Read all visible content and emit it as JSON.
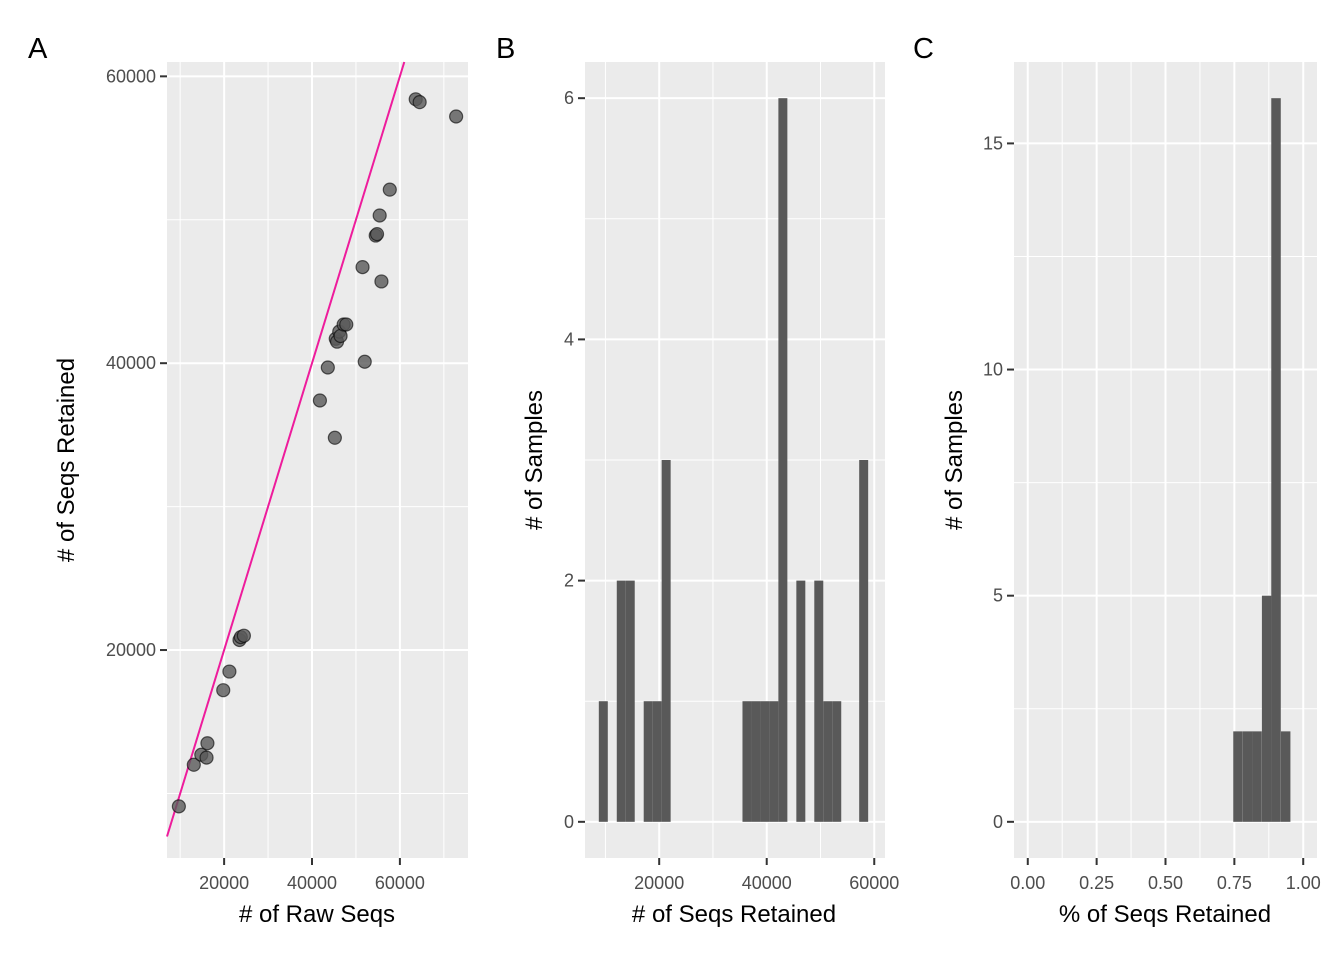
{
  "colors": {
    "panel_bg": "#ebebeb",
    "grid": "#ffffff",
    "tick": "#333333",
    "point_fill": "#595959",
    "point_stroke": "#000000",
    "bar_fill": "#595959",
    "line": "#ee1c9c"
  },
  "chart_data": [
    {
      "tag": "A",
      "type": "scatter",
      "xlabel": "# of Raw Seqs",
      "ylabel": "# of Seqs Retained",
      "xlim": [
        7000,
        75500
      ],
      "ylim": [
        5500,
        61000
      ],
      "xticks": [
        20000,
        40000,
        60000
      ],
      "xtick_labels": [
        "20000",
        "40000",
        "60000"
      ],
      "yticks": [
        20000,
        40000,
        60000
      ],
      "ytick_labels": [
        "20000",
        "40000",
        "60000"
      ],
      "grid": true,
      "reference_line": {
        "slope": 1,
        "intercept": 0
      },
      "points": [
        {
          "x": 9700,
          "y": 9100
        },
        {
          "x": 13100,
          "y": 12000
        },
        {
          "x": 14800,
          "y": 12700
        },
        {
          "x": 16000,
          "y": 12500
        },
        {
          "x": 16200,
          "y": 13500
        },
        {
          "x": 19800,
          "y": 17200
        },
        {
          "x": 21200,
          "y": 18500
        },
        {
          "x": 23500,
          "y": 20700
        },
        {
          "x": 23800,
          "y": 20900
        },
        {
          "x": 24500,
          "y": 21000
        },
        {
          "x": 41800,
          "y": 37400
        },
        {
          "x": 43600,
          "y": 39700
        },
        {
          "x": 45200,
          "y": 34800
        },
        {
          "x": 45400,
          "y": 41700
        },
        {
          "x": 45700,
          "y": 41500
        },
        {
          "x": 46200,
          "y": 42200
        },
        {
          "x": 46500,
          "y": 41900
        },
        {
          "x": 47200,
          "y": 42700
        },
        {
          "x": 47800,
          "y": 42700
        },
        {
          "x": 51500,
          "y": 46700
        },
        {
          "x": 52000,
          "y": 40100
        },
        {
          "x": 54500,
          "y": 48900
        },
        {
          "x": 54800,
          "y": 49000
        },
        {
          "x": 55400,
          "y": 50300
        },
        {
          "x": 55800,
          "y": 45700
        },
        {
          "x": 57700,
          "y": 52100
        },
        {
          "x": 63600,
          "y": 58400
        },
        {
          "x": 64500,
          "y": 58200
        },
        {
          "x": 72800,
          "y": 57200
        }
      ]
    },
    {
      "tag": "B",
      "type": "bar",
      "xlabel": "# of Seqs Retained",
      "ylabel": "# of Samples",
      "xlim": [
        6200,
        62000
      ],
      "ylim": [
        -0.3,
        6.3
      ],
      "xticks": [
        20000,
        40000,
        60000
      ],
      "xtick_labels": [
        "20000",
        "40000",
        "60000"
      ],
      "yticks": [
        0,
        2,
        4,
        6
      ],
      "ytick_labels": [
        "0",
        "2",
        "4",
        "6"
      ],
      "grid": true,
      "bin_width": 1670,
      "bins": [
        {
          "x0": 8770,
          "count": 1
        },
        {
          "x0": 12110,
          "count": 2
        },
        {
          "x0": 13780,
          "count": 2
        },
        {
          "x0": 17120,
          "count": 1
        },
        {
          "x0": 18790,
          "count": 1
        },
        {
          "x0": 20460,
          "count": 3
        },
        {
          "x0": 35490,
          "count": 1
        },
        {
          "x0": 37160,
          "count": 1
        },
        {
          "x0": 38830,
          "count": 1
        },
        {
          "x0": 40500,
          "count": 1
        },
        {
          "x0": 42170,
          "count": 6
        },
        {
          "x0": 45510,
          "count": 2
        },
        {
          "x0": 48850,
          "count": 2
        },
        {
          "x0": 50520,
          "count": 1
        },
        {
          "x0": 52190,
          "count": 1
        },
        {
          "x0": 57200,
          "count": 3
        }
      ]
    },
    {
      "tag": "C",
      "type": "bar",
      "xlabel": "% of Seqs Retained",
      "ylabel": "# of Samples",
      "xlim": [
        -0.05,
        1.05
      ],
      "ylim": [
        -0.8,
        16.8
      ],
      "xticks": [
        0,
        0.25,
        0.5,
        0.75,
        1
      ],
      "xtick_labels": [
        "0.00",
        "0.25",
        "0.50",
        "0.75",
        "1.00"
      ],
      "yticks": [
        0,
        5,
        10,
        15
      ],
      "ytick_labels": [
        "0",
        "5",
        "10",
        "15"
      ],
      "grid": true,
      "bin_width": 0.0345,
      "bins": [
        {
          "x0": 0.746,
          "count": 2
        },
        {
          "x0": 0.781,
          "count": 2
        },
        {
          "x0": 0.815,
          "count": 2
        },
        {
          "x0": 0.85,
          "count": 5
        },
        {
          "x0": 0.884,
          "count": 16
        },
        {
          "x0": 0.919,
          "count": 2
        }
      ]
    }
  ]
}
